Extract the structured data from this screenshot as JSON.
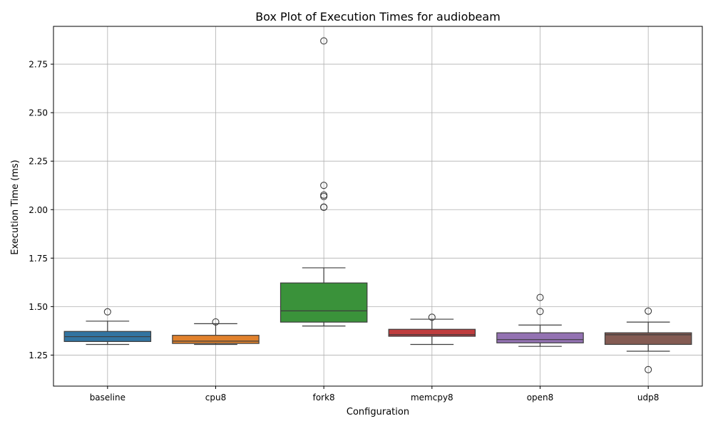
{
  "chart_data": {
    "type": "box",
    "title": "Box Plot of Execution Times for audiobeam",
    "xlabel": "Configuration",
    "ylabel": "Execution Time (ms)",
    "ylim": [
      1.09,
      2.945
    ],
    "grid": true,
    "yticks": [
      1.25,
      1.5,
      1.75,
      2.0,
      2.25,
      2.5,
      2.75
    ],
    "ytick_labels": [
      "1.25",
      "1.50",
      "1.75",
      "2.00",
      "2.25",
      "2.50",
      "2.75"
    ],
    "categories": [
      "baseline",
      "cpu8",
      "fork8",
      "memcpy8",
      "open8",
      "udp8"
    ],
    "boxes": [
      {
        "name": "baseline",
        "color": "#3274a1",
        "whisker_low": 1.305,
        "q1": 1.32,
        "median": 1.345,
        "q3": 1.372,
        "whisker_high": 1.425,
        "outliers": [
          1.473
        ]
      },
      {
        "name": "cpu8",
        "color": "#e1812c",
        "whisker_low": 1.305,
        "q1": 1.31,
        "median": 1.322,
        "q3": 1.352,
        "whisker_high": 1.412,
        "outliers": [
          1.421
        ]
      },
      {
        "name": "fork8",
        "color": "#3a923a",
        "whisker_low": 1.4,
        "q1": 1.42,
        "median": 1.478,
        "q3": 1.622,
        "whisker_high": 1.7,
        "outliers": [
          2.012,
          2.013,
          2.068,
          2.075,
          2.125,
          2.87
        ]
      },
      {
        "name": "memcpy8",
        "color": "#c03d3e",
        "whisker_low": 1.305,
        "q1": 1.347,
        "median": 1.355,
        "q3": 1.383,
        "whisker_high": 1.435,
        "outliers": [
          1.445
        ]
      },
      {
        "name": "open8",
        "color": "#9372b2",
        "whisker_low": 1.295,
        "q1": 1.313,
        "median": 1.33,
        "q3": 1.365,
        "whisker_high": 1.405,
        "outliers": [
          1.475,
          1.547
        ]
      },
      {
        "name": "udp8",
        "color": "#845b53",
        "whisker_low": 1.27,
        "q1": 1.305,
        "median": 1.355,
        "q3": 1.365,
        "whisker_high": 1.42,
        "outliers": [
          1.175,
          1.477
        ]
      }
    ],
    "colors": {
      "edge": "#3d3d3d",
      "grid": "#b0b0b0",
      "axis": "#000000"
    }
  }
}
